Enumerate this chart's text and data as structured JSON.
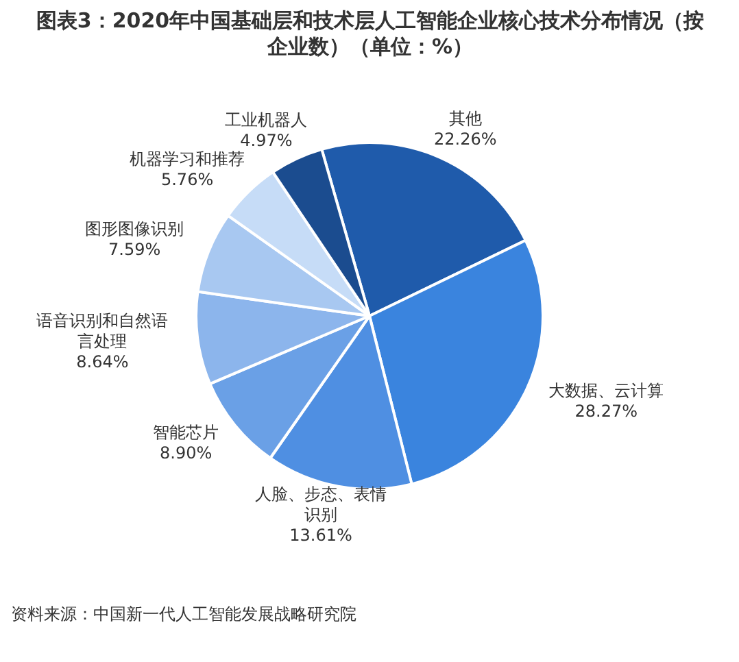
{
  "chart_data": {
    "type": "pie",
    "title": "图表3：2020年中国基础层和技术层人工智能企业核心技术分布情况（按企业数）（单位：%）",
    "categories": [
      "其他",
      "大数据、云计算",
      "人脸、步态、表情识别",
      "智能芯片",
      "语音识别和自然语言处理",
      "图形图像识别",
      "机器学习和推荐",
      "工业机器人"
    ],
    "values": [
      22.26,
      28.27,
      13.61,
      8.9,
      8.64,
      7.59,
      5.76,
      4.97
    ],
    "value_labels": [
      "22.26%",
      "28.27%",
      "13.61%",
      "8.90%",
      "8.64%",
      "7.59%",
      "5.76%",
      "4.97%"
    ],
    "colors": [
      "#1f5bab",
      "#3a84de",
      "#4f8fe2",
      "#6aa0e6",
      "#8cb5ec",
      "#a8c8f1",
      "#c6dcf7",
      "#1b4c8f"
    ],
    "legend": false,
    "annotations": [
      "资料来源：中国新一代人工智能发展战略研究院"
    ]
  }
}
